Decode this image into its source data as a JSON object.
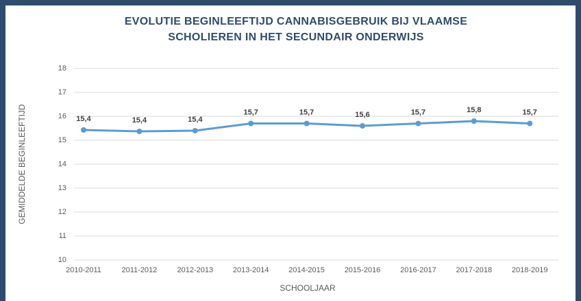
{
  "chart_data": {
    "type": "line",
    "title": [
      "EVOLUTIE BEGINLEEFTIJD CANNABISGEBRUIK BIJ VLAAMSE",
      "SCHOLIEREN IN HET SECUNDAIR ONDERWIJS"
    ],
    "x_label": "SCHOOLJAAR",
    "y_label": "GEMIDDELDE BEGINLEEFTIJD",
    "categories": [
      "2010-2011",
      "2011-2012",
      "2012-2013",
      "2013-2014",
      "2014-2015",
      "2015-2016",
      "2016-2017",
      "2017-2018",
      "2018-2019"
    ],
    "values": [
      15.43,
      15.37,
      15.4,
      15.7,
      15.7,
      15.6,
      15.7,
      15.8,
      15.7
    ],
    "value_labels": [
      "15,4",
      "15,4",
      "15,4",
      "15,7",
      "15,7",
      "15,6",
      "15,7",
      "15,8",
      "15,7"
    ],
    "color": "#5b9bd5",
    "ylim": [
      10,
      18
    ],
    "yticks": [
      10,
      11,
      12,
      13,
      14,
      15,
      16,
      17,
      18
    ],
    "grid": true
  }
}
